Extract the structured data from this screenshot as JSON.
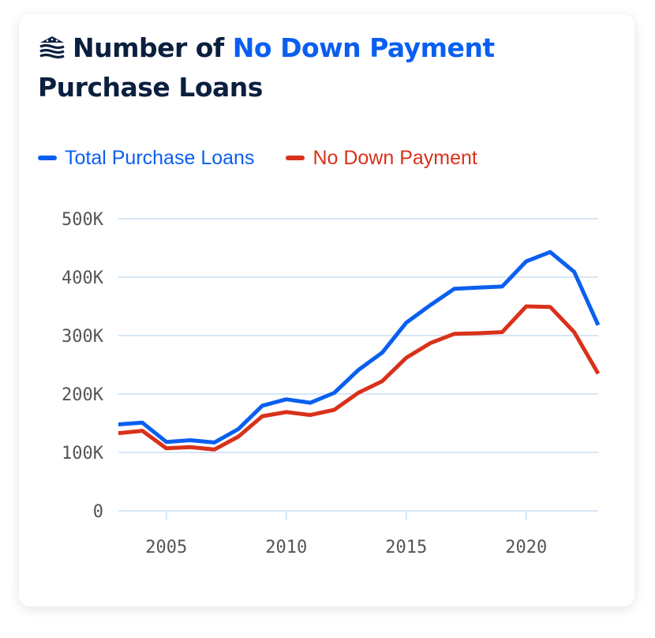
{
  "title": {
    "prefix": "Number of",
    "highlight": "No Down Payment",
    "suffix": "Purchase Loans"
  },
  "colors": {
    "title": "#0b1f3f",
    "accent": "#0a5ff0",
    "total": "#0a5ff0",
    "nodown": "#d9311a",
    "grid": "#d6e6f7",
    "axis_text": "#555555"
  },
  "logo_icon": "house-flag-icon",
  "chart_data": {
    "type": "line",
    "title": "Number of No Down Payment Purchase Loans",
    "xlabel": "",
    "ylabel": "",
    "xlim": [
      2003,
      2023
    ],
    "ylim": [
      0,
      500000
    ],
    "grid": true,
    "legend_position": "top-left",
    "x_ticks": [
      2005,
      2010,
      2015,
      2020
    ],
    "x_tick_labels": [
      "2005",
      "2010",
      "2015",
      "2020"
    ],
    "y_ticks": [
      0,
      100000,
      200000,
      300000,
      400000,
      500000
    ],
    "y_tick_labels": [
      "0",
      "100K",
      "200K",
      "300K",
      "400K",
      "500K"
    ],
    "x": [
      2003,
      2004,
      2005,
      2006,
      2007,
      2008,
      2009,
      2010,
      2011,
      2012,
      2013,
      2014,
      2015,
      2016,
      2017,
      2018,
      2019,
      2020,
      2021,
      2022,
      2023
    ],
    "series": [
      {
        "name": "Total Purchase Loans",
        "color": "#0a5ff0",
        "values": [
          148000,
          151000,
          118000,
          121000,
          117000,
          140000,
          180000,
          191000,
          185000,
          202000,
          241000,
          271000,
          322000,
          352000,
          380000,
          382000,
          384000,
          427000,
          443000,
          409000,
          318000
        ]
      },
      {
        "name": "No Down Payment",
        "color": "#d9311a",
        "values": [
          133000,
          137000,
          107000,
          109000,
          105000,
          127000,
          162000,
          169000,
          164000,
          173000,
          202000,
          222000,
          262000,
          287000,
          303000,
          304000,
          306000,
          350000,
          349000,
          306000,
          235000
        ]
      }
    ]
  }
}
